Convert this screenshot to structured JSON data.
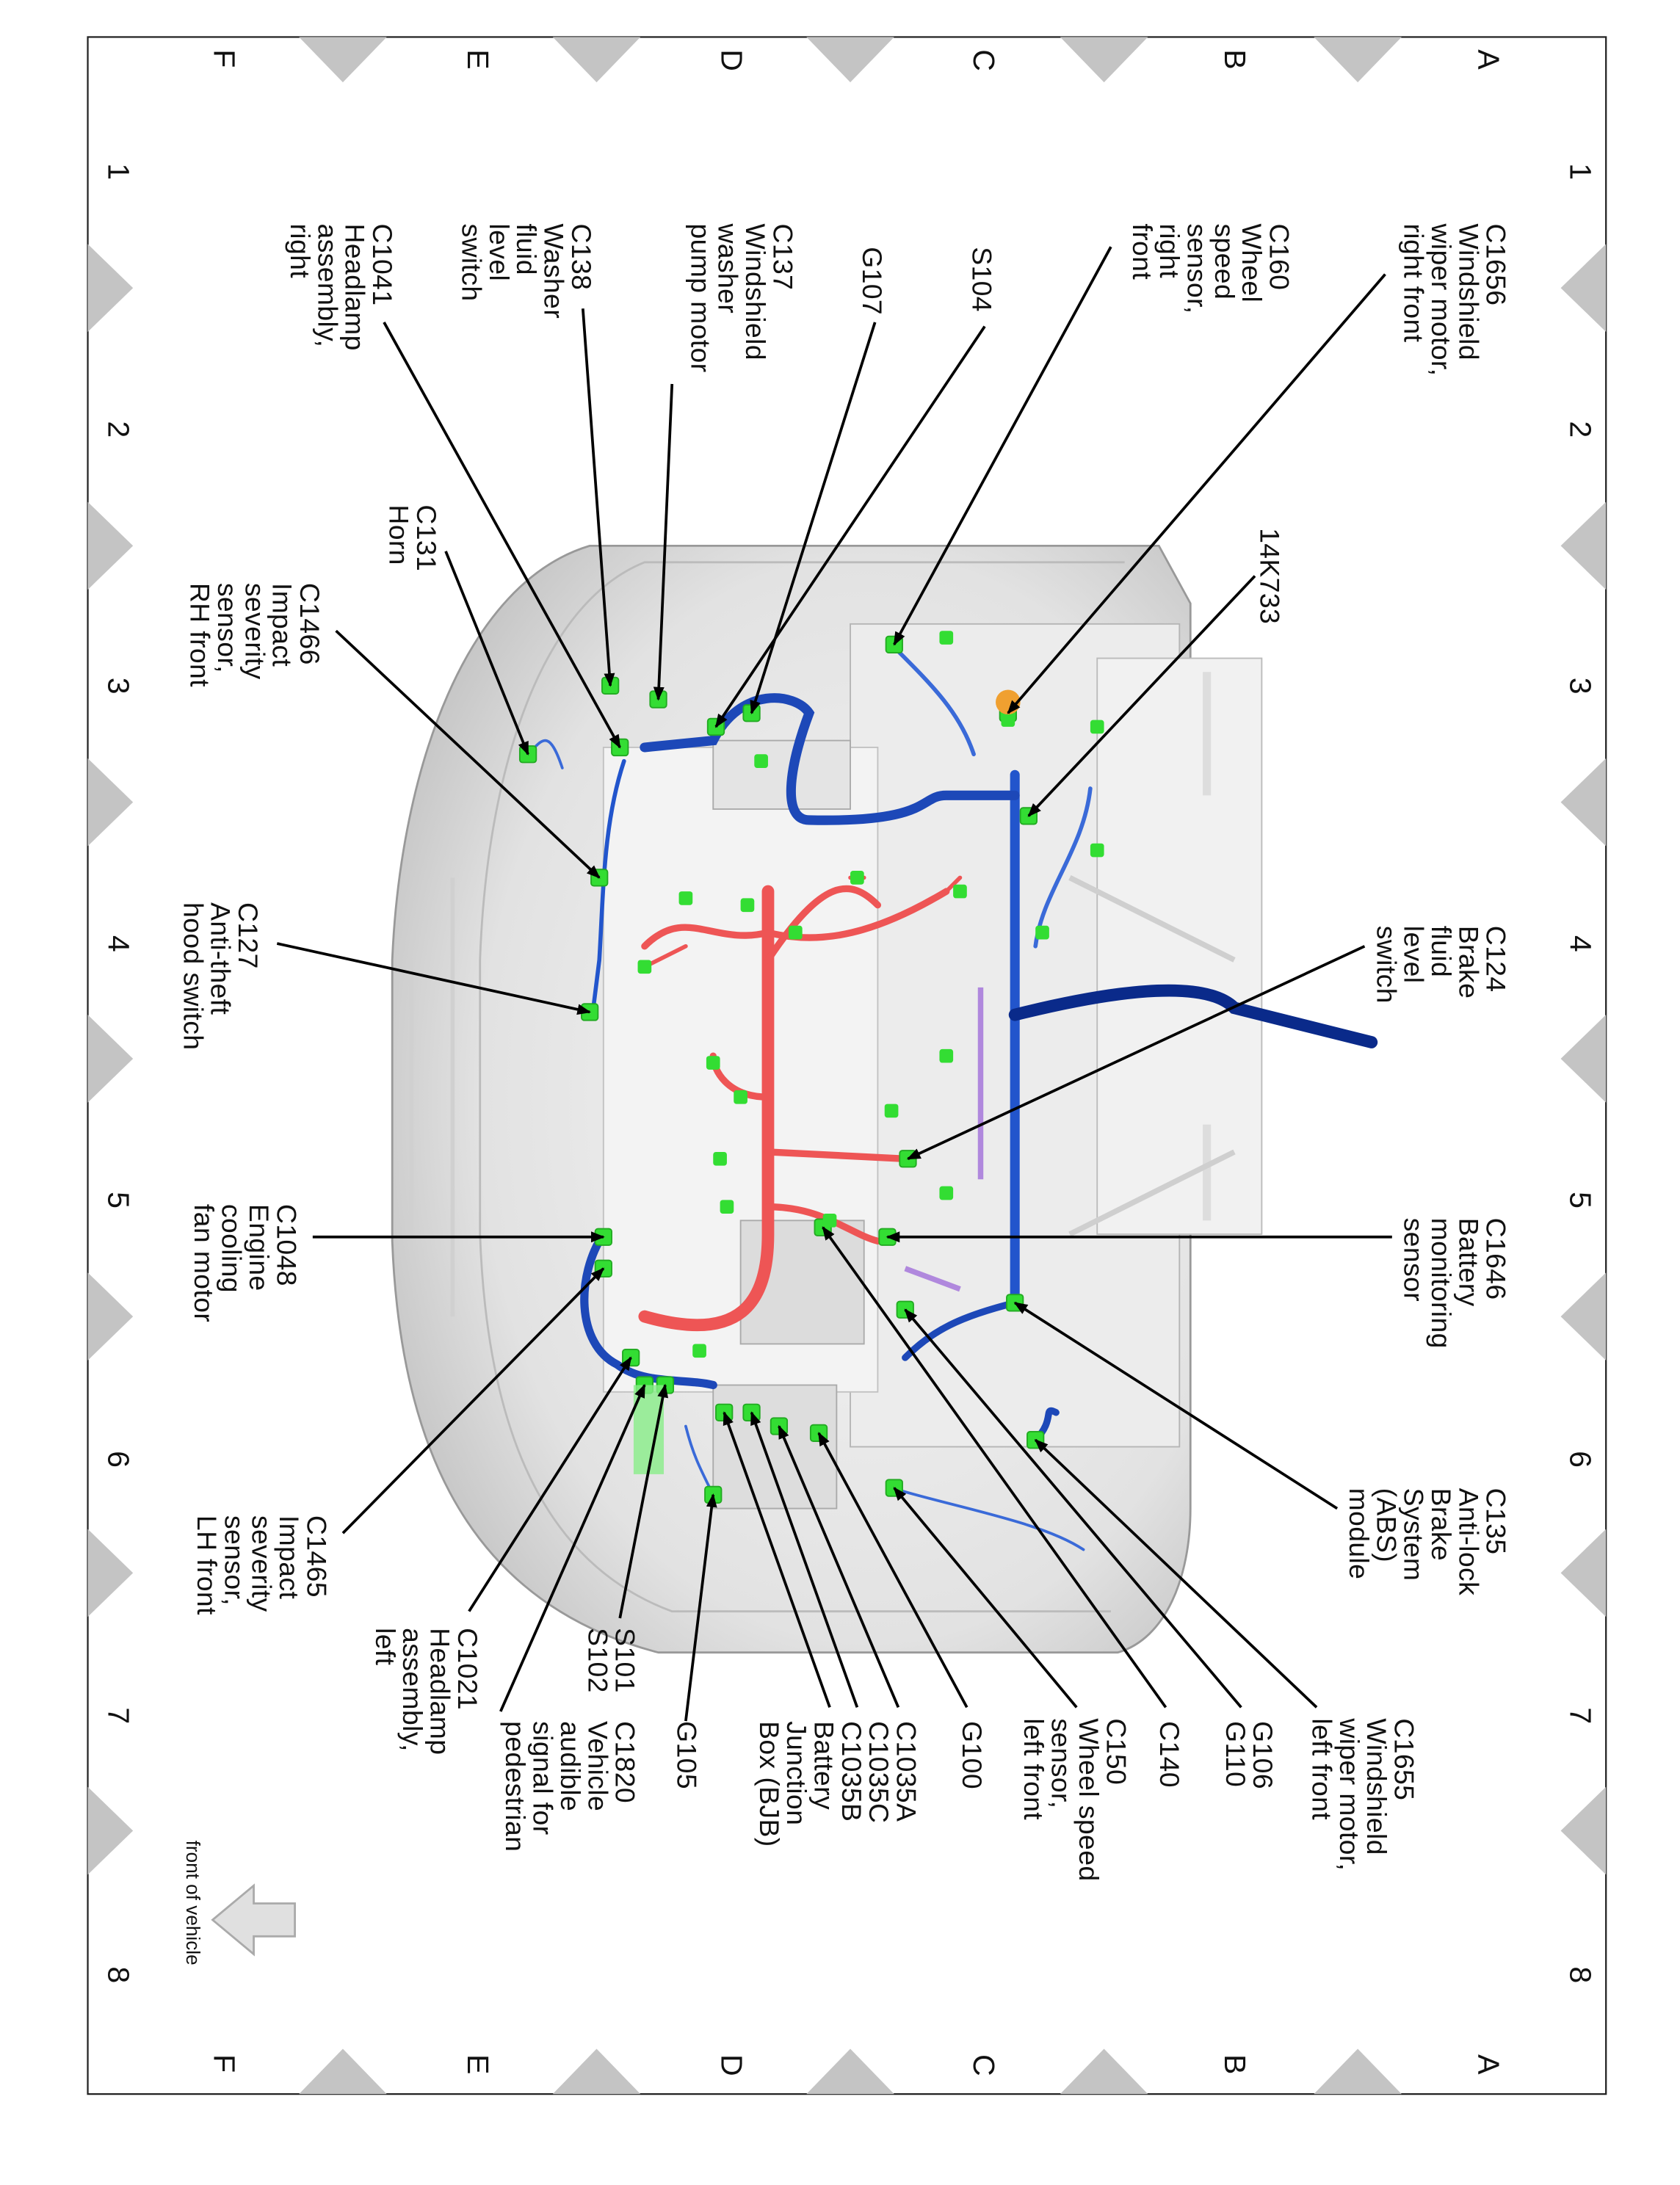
{
  "grid": {
    "columns": [
      "1",
      "2",
      "3",
      "4",
      "5",
      "6",
      "7",
      "8"
    ],
    "rows": [
      "A",
      "B",
      "C",
      "D",
      "E",
      "F"
    ]
  },
  "labels": [
    {
      "id": "C1656",
      "text": "C1656\nWindshield\nwiper motor,\nright front"
    },
    {
      "id": "C160",
      "text": "C160\nWheel\nspeed\nsensor,\nright\nfront"
    },
    {
      "id": "S104",
      "text": "S104"
    },
    {
      "id": "G107",
      "text": "G107"
    },
    {
      "id": "C137",
      "text": "C137\nWindshield\nwasher\npump motor"
    },
    {
      "id": "C138",
      "text": "C138\nWasher\nfluid\nlevel\nswitch"
    },
    {
      "id": "C1041",
      "text": "C1041\nHeadlamp\nassembly,\nright"
    },
    {
      "id": "14K733",
      "text": "14K733"
    },
    {
      "id": "C131",
      "text": "C131\nHorn"
    },
    {
      "id": "C1466",
      "text": "C1466\nImpact\nseverity\nsensor,\nRH front"
    },
    {
      "id": "C124",
      "text": "C124\nBrake\nfluid\nlevel\nswitch"
    },
    {
      "id": "C127",
      "text": "C127\nAnti-theft\nhood switch"
    },
    {
      "id": "C1646",
      "text": "C1646\nBattery\nmonitoring\nsensor"
    },
    {
      "id": "C1048",
      "text": "C1048\nEngine\ncooling\nfan motor"
    },
    {
      "id": "C135",
      "text": "C135\nAnti-lock\nBrake\nSystem\n(ABS)\nmodule"
    },
    {
      "id": "C1655",
      "text": "C1655\nWindshield\nwiper motor,\nleft front"
    },
    {
      "id": "G106",
      "text": "G106\nG110"
    },
    {
      "id": "C140",
      "text": "C140"
    },
    {
      "id": "C150",
      "text": "C150\nWheel speed\nsensor,\nleft front"
    },
    {
      "id": "G100",
      "text": "G100"
    },
    {
      "id": "C1035",
      "text": "C1035A\nC1035C\nC1035B\nBattery\nJunction\nBox (BJB)"
    },
    {
      "id": "G105",
      "text": "G105"
    },
    {
      "id": "C1820",
      "text": "C1820\nVehicle\naudible\nsignal for\npedestrian"
    },
    {
      "id": "S101",
      "text": "S101\nS102"
    },
    {
      "id": "C1021",
      "text": "C1021\nHeadlamp\nassembly,\nleft"
    },
    {
      "id": "C1465",
      "text": "C1465\nImpact\nseverity\nsensor,\nLH front"
    }
  ],
  "front_indicator": {
    "text": "front of vehicle",
    "icon": "arrow-up-icon"
  },
  "colors": {
    "connector": "#33dd33",
    "harness_blue": "#2255cc",
    "harness_dark": "#0a2a8a",
    "harness_red": "#ee5555",
    "grid_marker": "#c4c4c4",
    "body": "#e4e4e4"
  }
}
